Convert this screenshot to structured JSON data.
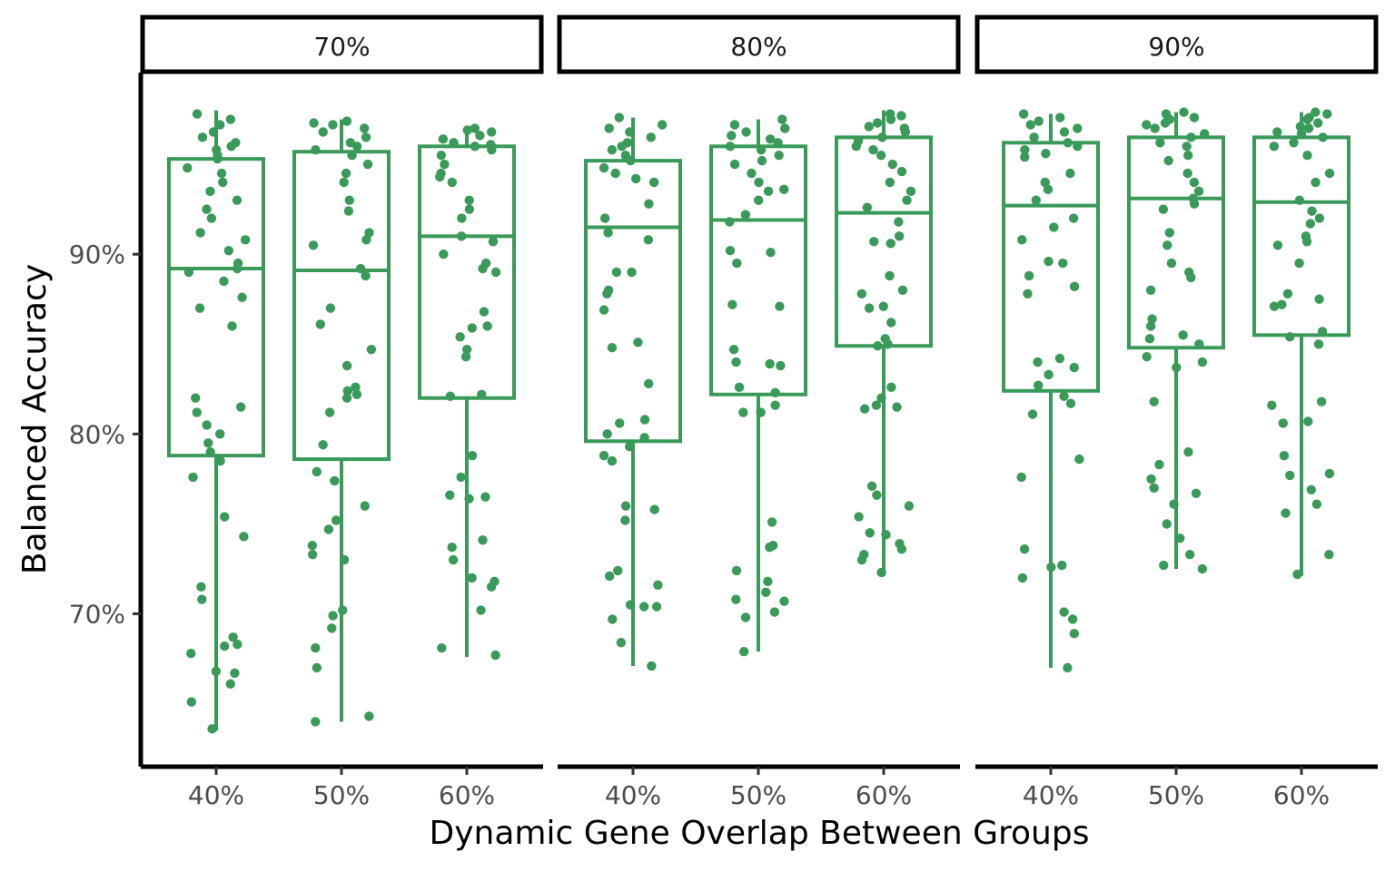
{
  "chart_data": {
    "type": "box",
    "ylabel": "Balanced Accuracy",
    "xlabel": "Dynamic Gene Overlap Between Groups",
    "ylim": [
      0.615,
      1.0
    ],
    "yticks": [
      0.7,
      0.8,
      0.9
    ],
    "ytick_labels": [
      "70%",
      "80%",
      "90%"
    ],
    "categories": [
      "40%",
      "50%",
      "60%"
    ],
    "color": "#3a9a5a",
    "grid": false,
    "legend": "none",
    "panels": [
      {
        "label": "70%",
        "boxes": [
          {
            "category": "40%",
            "min": 0.635,
            "q1": 0.788,
            "median": 0.892,
            "q3": 0.953,
            "max": 0.98,
            "points": [
              0.978,
              0.975,
              0.972,
              0.968,
              0.965,
              0.962,
              0.96,
              0.958,
              0.955,
              0.953,
              0.948,
              0.945,
              0.94,
              0.935,
              0.93,
              0.925,
              0.92,
              0.912,
              0.908,
              0.902,
              0.895,
              0.892,
              0.89,
              0.885,
              0.876,
              0.87,
              0.86,
              0.82,
              0.815,
              0.812,
              0.805,
              0.8,
              0.795,
              0.79,
              0.785,
              0.776,
              0.754,
              0.743,
              0.715,
              0.708,
              0.687,
              0.683,
              0.682,
              0.678,
              0.668,
              0.667,
              0.661,
              0.651,
              0.636
            ]
          },
          {
            "category": "50%",
            "min": 0.64,
            "q1": 0.786,
            "median": 0.891,
            "q3": 0.957,
            "max": 0.975,
            "points": [
              0.974,
              0.973,
              0.972,
              0.97,
              0.968,
              0.965,
              0.962,
              0.96,
              0.958,
              0.955,
              0.95,
              0.945,
              0.94,
              0.93,
              0.924,
              0.912,
              0.908,
              0.905,
              0.892,
              0.888,
              0.87,
              0.861,
              0.847,
              0.838,
              0.826,
              0.824,
              0.822,
              0.82,
              0.812,
              0.794,
              0.779,
              0.774,
              0.76,
              0.752,
              0.747,
              0.738,
              0.733,
              0.73,
              0.702,
              0.699,
              0.692,
              0.681,
              0.67,
              0.643,
              0.64
            ]
          },
          {
            "category": "60%",
            "min": 0.676,
            "q1": 0.82,
            "median": 0.91,
            "q3": 0.96,
            "max": 0.97,
            "points": [
              0.97,
              0.969,
              0.968,
              0.966,
              0.964,
              0.962,
              0.961,
              0.96,
              0.958,
              0.955,
              0.95,
              0.945,
              0.943,
              0.94,
              0.93,
              0.925,
              0.92,
              0.91,
              0.907,
              0.9,
              0.895,
              0.892,
              0.89,
              0.868,
              0.86,
              0.859,
              0.854,
              0.847,
              0.843,
              0.822,
              0.821,
              0.788,
              0.776,
              0.766,
              0.765,
              0.764,
              0.741,
              0.737,
              0.73,
              0.72,
              0.718,
              0.715,
              0.702,
              0.681,
              0.677
            ]
          }
        ]
      },
      {
        "label": "80%",
        "boxes": [
          {
            "category": "40%",
            "min": 0.671,
            "q1": 0.796,
            "median": 0.915,
            "q3": 0.952,
            "max": 0.976,
            "points": [
              0.976,
              0.972,
              0.97,
              0.968,
              0.965,
              0.962,
              0.96,
              0.958,
              0.955,
              0.952,
              0.948,
              0.945,
              0.942,
              0.94,
              0.928,
              0.92,
              0.912,
              0.908,
              0.89,
              0.89,
              0.88,
              0.878,
              0.869,
              0.851,
              0.848,
              0.828,
              0.808,
              0.806,
              0.8,
              0.798,
              0.793,
              0.788,
              0.785,
              0.76,
              0.758,
              0.752,
              0.724,
              0.721,
              0.716,
              0.705,
              0.704,
              0.704,
              0.697,
              0.684,
              0.671
            ]
          },
          {
            "category": "50%",
            "min": 0.679,
            "q1": 0.822,
            "median": 0.919,
            "q3": 0.96,
            "max": 0.975,
            "points": [
              0.975,
              0.972,
              0.97,
              0.968,
              0.966,
              0.964,
              0.962,
              0.96,
              0.958,
              0.955,
              0.952,
              0.95,
              0.945,
              0.94,
              0.936,
              0.935,
              0.93,
              0.922,
              0.918,
              0.902,
              0.901,
              0.895,
              0.872,
              0.871,
              0.847,
              0.84,
              0.839,
              0.838,
              0.826,
              0.823,
              0.816,
              0.812,
              0.812,
              0.751,
              0.738,
              0.737,
              0.724,
              0.718,
              0.712,
              0.708,
              0.707,
              0.701,
              0.698,
              0.679
            ]
          },
          {
            "category": "60%",
            "min": 0.723,
            "q1": 0.849,
            "median": 0.923,
            "q3": 0.965,
            "max": 0.98,
            "points": [
              0.978,
              0.977,
              0.975,
              0.973,
              0.971,
              0.97,
              0.968,
              0.965,
              0.963,
              0.96,
              0.958,
              0.955,
              0.95,
              0.946,
              0.94,
              0.935,
              0.93,
              0.926,
              0.918,
              0.91,
              0.907,
              0.906,
              0.888,
              0.88,
              0.878,
              0.871,
              0.87,
              0.862,
              0.853,
              0.85,
              0.849,
              0.826,
              0.82,
              0.816,
              0.815,
              0.814,
              0.771,
              0.766,
              0.76,
              0.754,
              0.745,
              0.744,
              0.739,
              0.736,
              0.733,
              0.73,
              0.723
            ]
          }
        ]
      },
      {
        "label": "90%",
        "boxes": [
          {
            "category": "40%",
            "min": 0.67,
            "q1": 0.824,
            "median": 0.927,
            "q3": 0.962,
            "max": 0.978,
            "points": [
              0.978,
              0.976,
              0.974,
              0.972,
              0.97,
              0.968,
              0.965,
              0.962,
              0.96,
              0.958,
              0.956,
              0.954,
              0.945,
              0.94,
              0.936,
              0.93,
              0.92,
              0.915,
              0.908,
              0.896,
              0.895,
              0.888,
              0.882,
              0.878,
              0.842,
              0.84,
              0.837,
              0.833,
              0.827,
              0.821,
              0.817,
              0.811,
              0.786,
              0.776,
              0.736,
              0.727,
              0.726,
              0.72,
              0.701,
              0.697,
              0.689,
              0.67
            ]
          },
          {
            "category": "50%",
            "min": 0.725,
            "q1": 0.848,
            "median": 0.931,
            "q3": 0.965,
            "max": 0.979,
            "points": [
              0.979,
              0.978,
              0.976,
              0.975,
              0.973,
              0.972,
              0.97,
              0.967,
              0.965,
              0.962,
              0.96,
              0.955,
              0.952,
              0.945,
              0.94,
              0.935,
              0.931,
              0.928,
              0.925,
              0.912,
              0.905,
              0.895,
              0.89,
              0.887,
              0.88,
              0.864,
              0.86,
              0.855,
              0.853,
              0.85,
              0.843,
              0.84,
              0.837,
              0.818,
              0.79,
              0.783,
              0.775,
              0.77,
              0.767,
              0.761,
              0.75,
              0.742,
              0.733,
              0.727,
              0.725
            ]
          },
          {
            "category": "60%",
            "min": 0.721,
            "q1": 0.855,
            "median": 0.929,
            "q3": 0.965,
            "max": 0.979,
            "points": [
              0.979,
              0.978,
              0.976,
              0.975,
              0.973,
              0.971,
              0.97,
              0.968,
              0.967,
              0.965,
              0.962,
              0.96,
              0.955,
              0.945,
              0.94,
              0.93,
              0.924,
              0.92,
              0.917,
              0.91,
              0.907,
              0.905,
              0.895,
              0.878,
              0.875,
              0.872,
              0.871,
              0.857,
              0.854,
              0.85,
              0.818,
              0.816,
              0.807,
              0.806,
              0.788,
              0.778,
              0.777,
              0.769,
              0.761,
              0.756,
              0.733,
              0.722
            ]
          }
        ]
      }
    ]
  }
}
